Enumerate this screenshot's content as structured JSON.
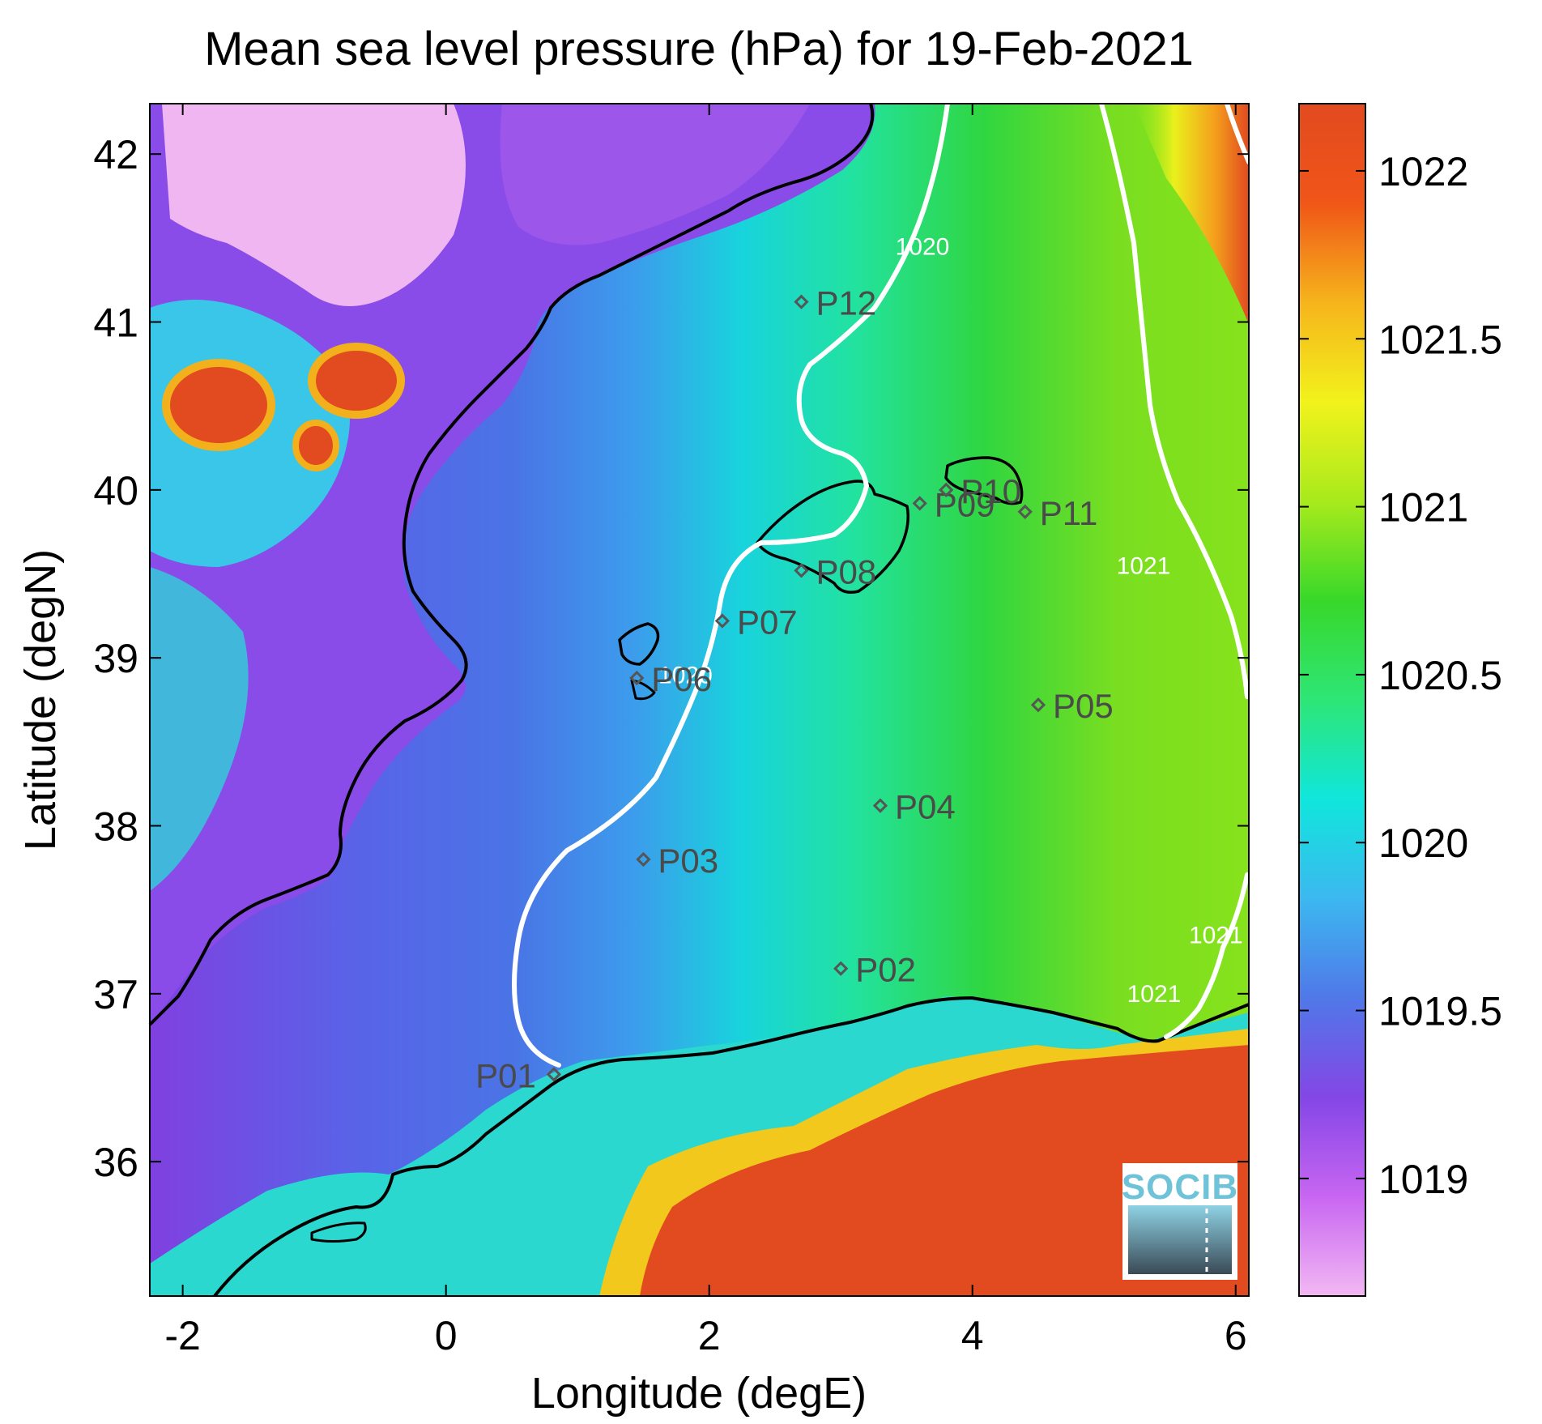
{
  "title": "Mean sea level pressure (hPa) for 19-Feb-2021",
  "x_axis": {
    "label": "Longitude (degE)",
    "range": [
      -2.25,
      6.1
    ],
    "ticks": [
      -2,
      0,
      2,
      4,
      6
    ],
    "tick_labels": [
      "-2",
      "0",
      "2",
      "4",
      "6"
    ]
  },
  "y_axis": {
    "label": "Latitude (degN)",
    "range": [
      35.2,
      42.3
    ],
    "ticks": [
      36,
      37,
      38,
      39,
      40,
      41,
      42
    ],
    "tick_labels": [
      "36",
      "37",
      "38",
      "39",
      "40",
      "41",
      "42"
    ]
  },
  "colorbar": {
    "range": [
      1018.65,
      1022.2
    ],
    "ticks": [
      1019,
      1019.5,
      1020,
      1020.5,
      1021,
      1021.5,
      1022
    ],
    "tick_labels": [
      "1019",
      "1019.5",
      "1020",
      "1020.5",
      "1021",
      "1021.5",
      "1022"
    ],
    "colors": [
      "#f2b8f2",
      "#c866f2",
      "#8446e6",
      "#5078e8",
      "#3cb8f0",
      "#10e6dc",
      "#2ee676",
      "#38d82a",
      "#a8ea1c",
      "#f2f21c",
      "#f6b41c",
      "#f05618",
      "#e24a20"
    ]
  },
  "contour_labels": [
    {
      "text": "1020",
      "lon": 3.62,
      "lat": 41.4
    },
    {
      "text": "1020",
      "lon": 1.82,
      "lat": 38.85
    },
    {
      "text": "1021",
      "lon": 5.3,
      "lat": 39.5
    },
    {
      "text": "1021",
      "lon": 5.38,
      "lat": 36.95
    },
    {
      "text": "1021",
      "lon": 5.85,
      "lat": 37.3
    }
  ],
  "stations": [
    {
      "id": "P01",
      "lon": 0.82,
      "lat": 36.52
    },
    {
      "id": "P02",
      "lon": 3.0,
      "lat": 37.15
    },
    {
      "id": "P03",
      "lon": 1.5,
      "lat": 37.8
    },
    {
      "id": "P04",
      "lon": 3.3,
      "lat": 38.12
    },
    {
      "id": "P05",
      "lon": 4.5,
      "lat": 38.72
    },
    {
      "id": "P06",
      "lon": 1.45,
      "lat": 38.88
    },
    {
      "id": "P07",
      "lon": 2.1,
      "lat": 39.22
    },
    {
      "id": "P08",
      "lon": 2.7,
      "lat": 39.52
    },
    {
      "id": "P09",
      "lon": 3.6,
      "lat": 39.92
    },
    {
      "id": "P10",
      "lon": 3.8,
      "lat": 40.0
    },
    {
      "id": "P11",
      "lon": 4.4,
      "lat": 39.87
    },
    {
      "id": "P12",
      "lon": 2.7,
      "lat": 41.12
    }
  ],
  "logo": {
    "text": "SOCIB"
  },
  "colors": {
    "coastline": "#000000",
    "contour": "#ffffff",
    "station_marker": "#555555"
  }
}
